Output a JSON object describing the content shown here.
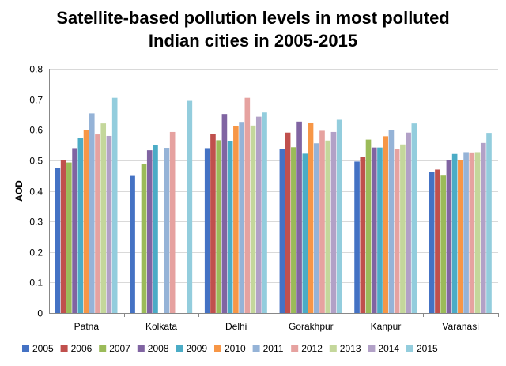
{
  "chart_data": {
    "type": "bar",
    "title_lines": [
      "Satellite-based pollution levels in most polluted",
      "Indian cities in 2005-2015"
    ],
    "xlabel": "",
    "ylabel": "AOD",
    "ylim": [
      0,
      0.8
    ],
    "yticks": [
      "0",
      "0.1",
      "0.2",
      "0.3",
      "0.4",
      "0.5",
      "0.6",
      "0.7",
      "0.8"
    ],
    "grid": true,
    "legend_position": "bottom",
    "categories": [
      "Patna",
      "Kolkata",
      "Delhi",
      "Gorakhpur",
      "Kanpur",
      "Varanasi"
    ],
    "series": [
      {
        "name": "2005",
        "color": "#4472C4",
        "values": [
          0.474,
          0.449,
          0.54,
          0.537,
          0.496,
          0.461
        ]
      },
      {
        "name": "2006",
        "color": "#C0504D",
        "values": [
          0.5,
          null,
          0.586,
          0.591,
          0.512,
          0.47
        ]
      },
      {
        "name": "2007",
        "color": "#9BBB59",
        "values": [
          0.493,
          0.487,
          0.566,
          0.543,
          0.568,
          0.45
        ]
      },
      {
        "name": "2008",
        "color": "#8064A2",
        "values": [
          0.54,
          0.533,
          0.652,
          0.627,
          0.542,
          0.501
        ]
      },
      {
        "name": "2009",
        "color": "#4BACC6",
        "values": [
          0.573,
          0.551,
          0.562,
          0.522,
          0.542,
          0.521
        ]
      },
      {
        "name": "2010",
        "color": "#F79646",
        "values": [
          0.6,
          null,
          0.611,
          0.624,
          0.579,
          0.5
        ]
      },
      {
        "name": "2011",
        "color": "#95B3D7",
        "values": [
          0.654,
          0.541,
          0.626,
          0.556,
          0.599,
          0.527
        ]
      },
      {
        "name": "2012",
        "color": "#E6A2A0",
        "values": [
          0.585,
          0.593,
          0.705,
          0.597,
          0.536,
          0.526
        ]
      },
      {
        "name": "2013",
        "color": "#C4D79B",
        "values": [
          0.621,
          null,
          0.614,
          0.565,
          0.552,
          0.527
        ]
      },
      {
        "name": "2014",
        "color": "#B2A1C7",
        "values": [
          0.58,
          null,
          0.643,
          0.593,
          0.591,
          0.557
        ]
      },
      {
        "name": "2015",
        "color": "#93CDDD",
        "values": [
          0.705,
          0.695,
          0.657,
          0.633,
          0.621,
          0.59
        ]
      }
    ]
  }
}
